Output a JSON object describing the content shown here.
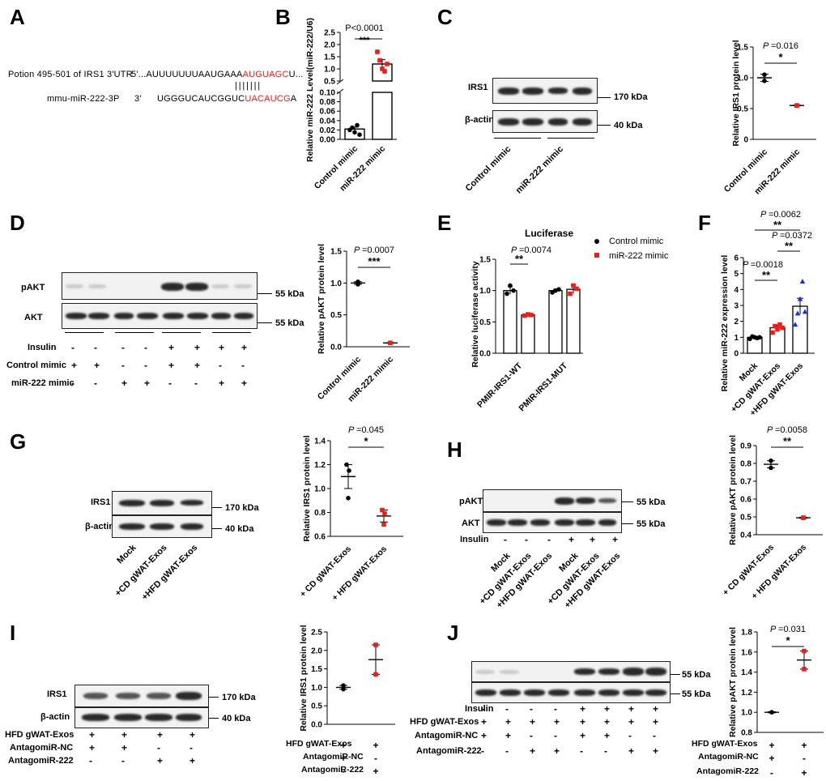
{
  "panels": {
    "A": "A",
    "B": "B",
    "C": "C",
    "D": "D",
    "E": "E",
    "F": "F",
    "G": "G",
    "H": "H",
    "I": "I",
    "J": "J"
  },
  "panel_a": {
    "row1_label": "Potion 495-501 of IRS1 3'UTR",
    "row1_prime": "5'...",
    "row1_seq_black": "AUUUUUUUAAUGAAA",
    "row1_seq_red": "AUGUAGC",
    "row1_seq_end": "U...",
    "pairing": "| | | | | | |",
    "row2_label": "mmu-miR-222-3P",
    "row2_prime": "3'",
    "row2_seq_black": "UGGGUCAUCGGUC",
    "row2_seq_red": "UACAUCG",
    "row2_seq_end": "A",
    "red_color": "#e8201b"
  },
  "common": {
    "kda_170": "170 kDa",
    "kda_55": "55 kDa",
    "kda_40": "40 kDa",
    "irs1": "IRS1",
    "bactin": "β-actin",
    "pakt": "pAKT",
    "akt": "AKT",
    "insulin": "Insulin",
    "control_mimic": "Control mimic",
    "mir222_mimic": "miR-222 mimic",
    "mock": "Mock",
    "cd_exos": "+CD gWAT-Exos",
    "hfd_exos": "+HFD gWAT-Exos",
    "cd_exos_sp": "+ CD gWAT-Exos",
    "hfd_exos_sp": "+ HFD gWAT-Exos",
    "hfd_gwat": "HFD gWAT-Exos",
    "antago_nc": "AntagomiR-NC",
    "antago_222": "AntagomiR-222",
    "plus": "+",
    "minus": "-",
    "sig1": "*",
    "sig2": "**",
    "sig3": "***"
  },
  "chart_data": [
    {
      "panel": "B",
      "type": "bar",
      "categories": [
        "Control mimic",
        "miR-222 mimic"
      ],
      "values": [
        0.022,
        1.2
      ],
      "errors": [
        0.004,
        0.18
      ],
      "ylabel": "Relative miR-222 Level(miR-222/U6)",
      "axis_break": true,
      "ylim_lower": [
        0,
        0.1
      ],
      "ylim_upper": [
        0.5,
        2.5
      ],
      "yticks_lower": [
        "0.00",
        "0.02",
        "0.04",
        "0.06",
        "0.08",
        "0.10"
      ],
      "yticks_upper": [
        "0.5",
        "1.0",
        "1.5",
        "2.0",
        "2.5"
      ],
      "annotation": "P<0.0001",
      "sig": "***",
      "colors": [
        "#000000",
        "#e8201b"
      ]
    },
    {
      "panel": "C",
      "type": "scatter",
      "categories": [
        "Control mimic",
        "miR-222 mimic"
      ],
      "values": [
        1.0,
        0.55
      ],
      "errors": [
        0.06,
        0.005
      ],
      "points": [
        [
          0.95,
          1.05
        ],
        [
          0.55,
          0.55
        ]
      ],
      "ylabel": "Relative IRS1 protein level",
      "ylim": [
        0,
        1.5
      ],
      "yticks": [
        "0",
        "0.5",
        "1.0",
        "1.5"
      ],
      "annotation": "=0.016",
      "p_prefix": "P",
      "sig": "*"
    },
    {
      "panel": "D",
      "type": "scatter",
      "categories": [
        "Control mimic",
        "miR-222 mimic"
      ],
      "values": [
        1.0,
        0.06
      ],
      "errors": [
        0.02,
        0.005
      ],
      "points": [
        [
          0.98,
          1.02
        ],
        [
          0.06,
          0.06
        ]
      ],
      "ylabel": "Relative pAKT protein level",
      "ylim": [
        0,
        1.5
      ],
      "yticks": [
        "0.0",
        "0.5",
        "1.0",
        "1.5"
      ],
      "annotation": "=0.0007",
      "p_prefix": "P",
      "sig": "***"
    },
    {
      "panel": "E",
      "type": "bar",
      "title": "Luciferase",
      "categories": [
        "PMIR-IRS1-WT",
        "PMIR-IRS1-MUT"
      ],
      "series": [
        {
          "name": "Control mimic",
          "values": [
            1.0,
            1.0
          ],
          "errors": [
            0.06,
            0.02
          ],
          "points": [
            [
              0.95,
              1.08,
              1.0
            ],
            [
              0.97,
              1.0,
              1.02
            ]
          ]
        },
        {
          "name": "miR-222 mimic",
          "values": [
            0.61,
            1.02
          ],
          "errors": [
            0.01,
            0.07
          ],
          "points": [
            [
              0.6,
              0.62,
              0.61
            ],
            [
              0.95,
              1.08,
              1.03
            ]
          ]
        }
      ],
      "ylabel": "Relative luciferase activity",
      "ylim": [
        0,
        1.5
      ],
      "yticks": [
        "0.0",
        "0.5",
        "1.0",
        "1.5"
      ],
      "annotation": "=0.0074",
      "p_prefix": "P",
      "sig": "**",
      "legend_position": "top-right",
      "colors": [
        "#000000",
        "#e8201b"
      ]
    },
    {
      "panel": "F",
      "type": "bar",
      "categories": [
        "Mock",
        "+CD gWAT-Exos",
        "+HFD gWAT-Exos"
      ],
      "values": [
        1.0,
        1.6,
        2.95
      ],
      "errors": [
        0.05,
        0.15,
        0.5
      ],
      "points": [
        [
          0.9,
          1.05,
          1.0,
          0.95,
          1.0
        ],
        [
          1.3,
          1.7,
          1.5,
          1.8,
          1.6
        ],
        [
          1.8,
          2.5,
          3.4,
          4.5,
          2.6
        ]
      ],
      "ylabel": "Relative miR-222 expression level",
      "ylim": [
        0,
        6
      ],
      "yticks": [
        "0",
        "1",
        "2",
        "3",
        "4",
        "5",
        "6"
      ],
      "annotations": [
        {
          "p": "=0.0062",
          "sig": "**",
          "pair": [
            "Mock",
            "+HFD gWAT-Exos"
          ]
        },
        {
          "p": "=0.0372",
          "sig": "**",
          "pair": [
            "+CD gWAT-Exos",
            "+HFD gWAT-Exos"
          ]
        },
        {
          "p": "=0.0018",
          "sig": "**",
          "pair": [
            "Mock",
            "+CD gWAT-Exos"
          ]
        }
      ],
      "p_prefix": "P",
      "colors": [
        "#000000",
        "#e8201b",
        "#1a2fd8"
      ]
    },
    {
      "panel": "G",
      "type": "scatter",
      "categories": [
        "+ CD gWAT-Exos",
        "+ HFD gWAT-Exos"
      ],
      "values": [
        1.1,
        0.77
      ],
      "errors": [
        0.1,
        0.05
      ],
      "points": [
        [
          1.2,
          1.15,
          0.92
        ],
        [
          0.82,
          0.79,
          0.7
        ]
      ],
      "ylabel": "Relative IRS1 protein level",
      "ylim": [
        0.6,
        1.4
      ],
      "yticks": [
        "0.6",
        "0.8",
        "1.0",
        "1.2",
        "1.4"
      ],
      "annotation": "=0.045",
      "p_prefix": "P",
      "sig": "*"
    },
    {
      "panel": "H",
      "type": "scatter",
      "categories": [
        "+ CD gWAT-Exos",
        "+ HFD gWAT-Exos"
      ],
      "values": [
        0.795,
        0.495
      ],
      "errors": [
        0.02,
        0.003
      ],
      "points": [
        [
          0.775,
          0.815
        ],
        [
          0.495,
          0.495
        ]
      ],
      "ylabel": "Relative pAKT protein level",
      "ylim": [
        0.4,
        0.9
      ],
      "yticks": [
        "0.4",
        "0.5",
        "0.6",
        "0.7",
        "0.8",
        "0.9"
      ],
      "annotation": "=0.0058",
      "p_prefix": "P",
      "sig": "**"
    },
    {
      "panel": "I",
      "type": "scatter",
      "categories": [
        "AntagomiR-NC",
        "AntagomiR-222"
      ],
      "values": [
        1.0,
        1.75
      ],
      "errors": [
        0.05,
        0.4
      ],
      "points": [
        [
          0.95,
          1.05
        ],
        [
          1.35,
          2.15
        ]
      ],
      "ylabel": "Relative IRS1 protein level",
      "ylim": [
        0,
        2.5
      ],
      "yticks": [
        "0.0",
        "0.5",
        "1.0",
        "1.5",
        "2.0",
        "2.5"
      ]
    },
    {
      "panel": "J",
      "type": "scatter",
      "categories": [
        "AntagomiR-NC",
        "AntagomiR-222"
      ],
      "values": [
        1.0,
        1.52
      ],
      "errors": [
        0.005,
        0.09
      ],
      "points": [
        [
          1.0,
          1.0
        ],
        [
          1.43,
          1.61
        ]
      ],
      "ylabel": "Relative pAKT protein level",
      "ylim": [
        0.8,
        1.8
      ],
      "yticks": [
        "0.8",
        "1.0",
        "1.2",
        "1.4",
        "1.6",
        "1.8"
      ],
      "annotation": "=0.031",
      "p_prefix": "P",
      "sig": "*"
    }
  ]
}
